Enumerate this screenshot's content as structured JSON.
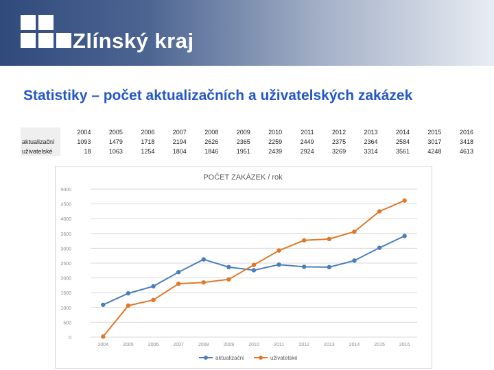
{
  "header": {
    "logo_text": "Zlínský kraj"
  },
  "slide_title": "Statistiky – počet aktualizačních a uživatelských zakázek",
  "table": {
    "years": [
      "2004",
      "2005",
      "2006",
      "2007",
      "2008",
      "2009",
      "2010",
      "2011",
      "2012",
      "2013",
      "2014",
      "2015",
      "2016"
    ],
    "rows": [
      {
        "label": "aktualizační",
        "values": [
          "1093",
          "1479",
          "1718",
          "2194",
          "2626",
          "2365",
          "2259",
          "2449",
          "2375",
          "2364",
          "2584",
          "3017",
          "3418"
        ]
      },
      {
        "label": "uživatelské",
        "values": [
          "18",
          "1063",
          "1254",
          "1804",
          "1846",
          "1951",
          "2439",
          "2924",
          "3269",
          "3314",
          "3561",
          "4248",
          "4613"
        ]
      }
    ]
  },
  "chart_data": {
    "type": "line",
    "title": "POČET ZAKÁZEK / rok",
    "categories": [
      "2004",
      "2005",
      "2006",
      "2007",
      "2008",
      "2009",
      "2010",
      "2011",
      "2012",
      "2013",
      "2014",
      "2015",
      "2016"
    ],
    "series": [
      {
        "name": "aktualizační",
        "color": "#4a7ebb",
        "values": [
          1093,
          1479,
          1718,
          2194,
          2626,
          2365,
          2259,
          2449,
          2375,
          2364,
          2584,
          3017,
          3418
        ]
      },
      {
        "name": "uživatelské",
        "color": "#e0782a",
        "values": [
          18,
          1063,
          1254,
          1804,
          1846,
          1951,
          2439,
          2924,
          3269,
          3314,
          3561,
          4248,
          4613
        ]
      }
    ],
    "ylim": [
      0,
      5000
    ],
    "yticks": [
      0,
      500,
      1000,
      1500,
      2000,
      2500,
      3000,
      3500,
      4000,
      4500,
      5000
    ],
    "grid": true,
    "legend": "bottom"
  }
}
